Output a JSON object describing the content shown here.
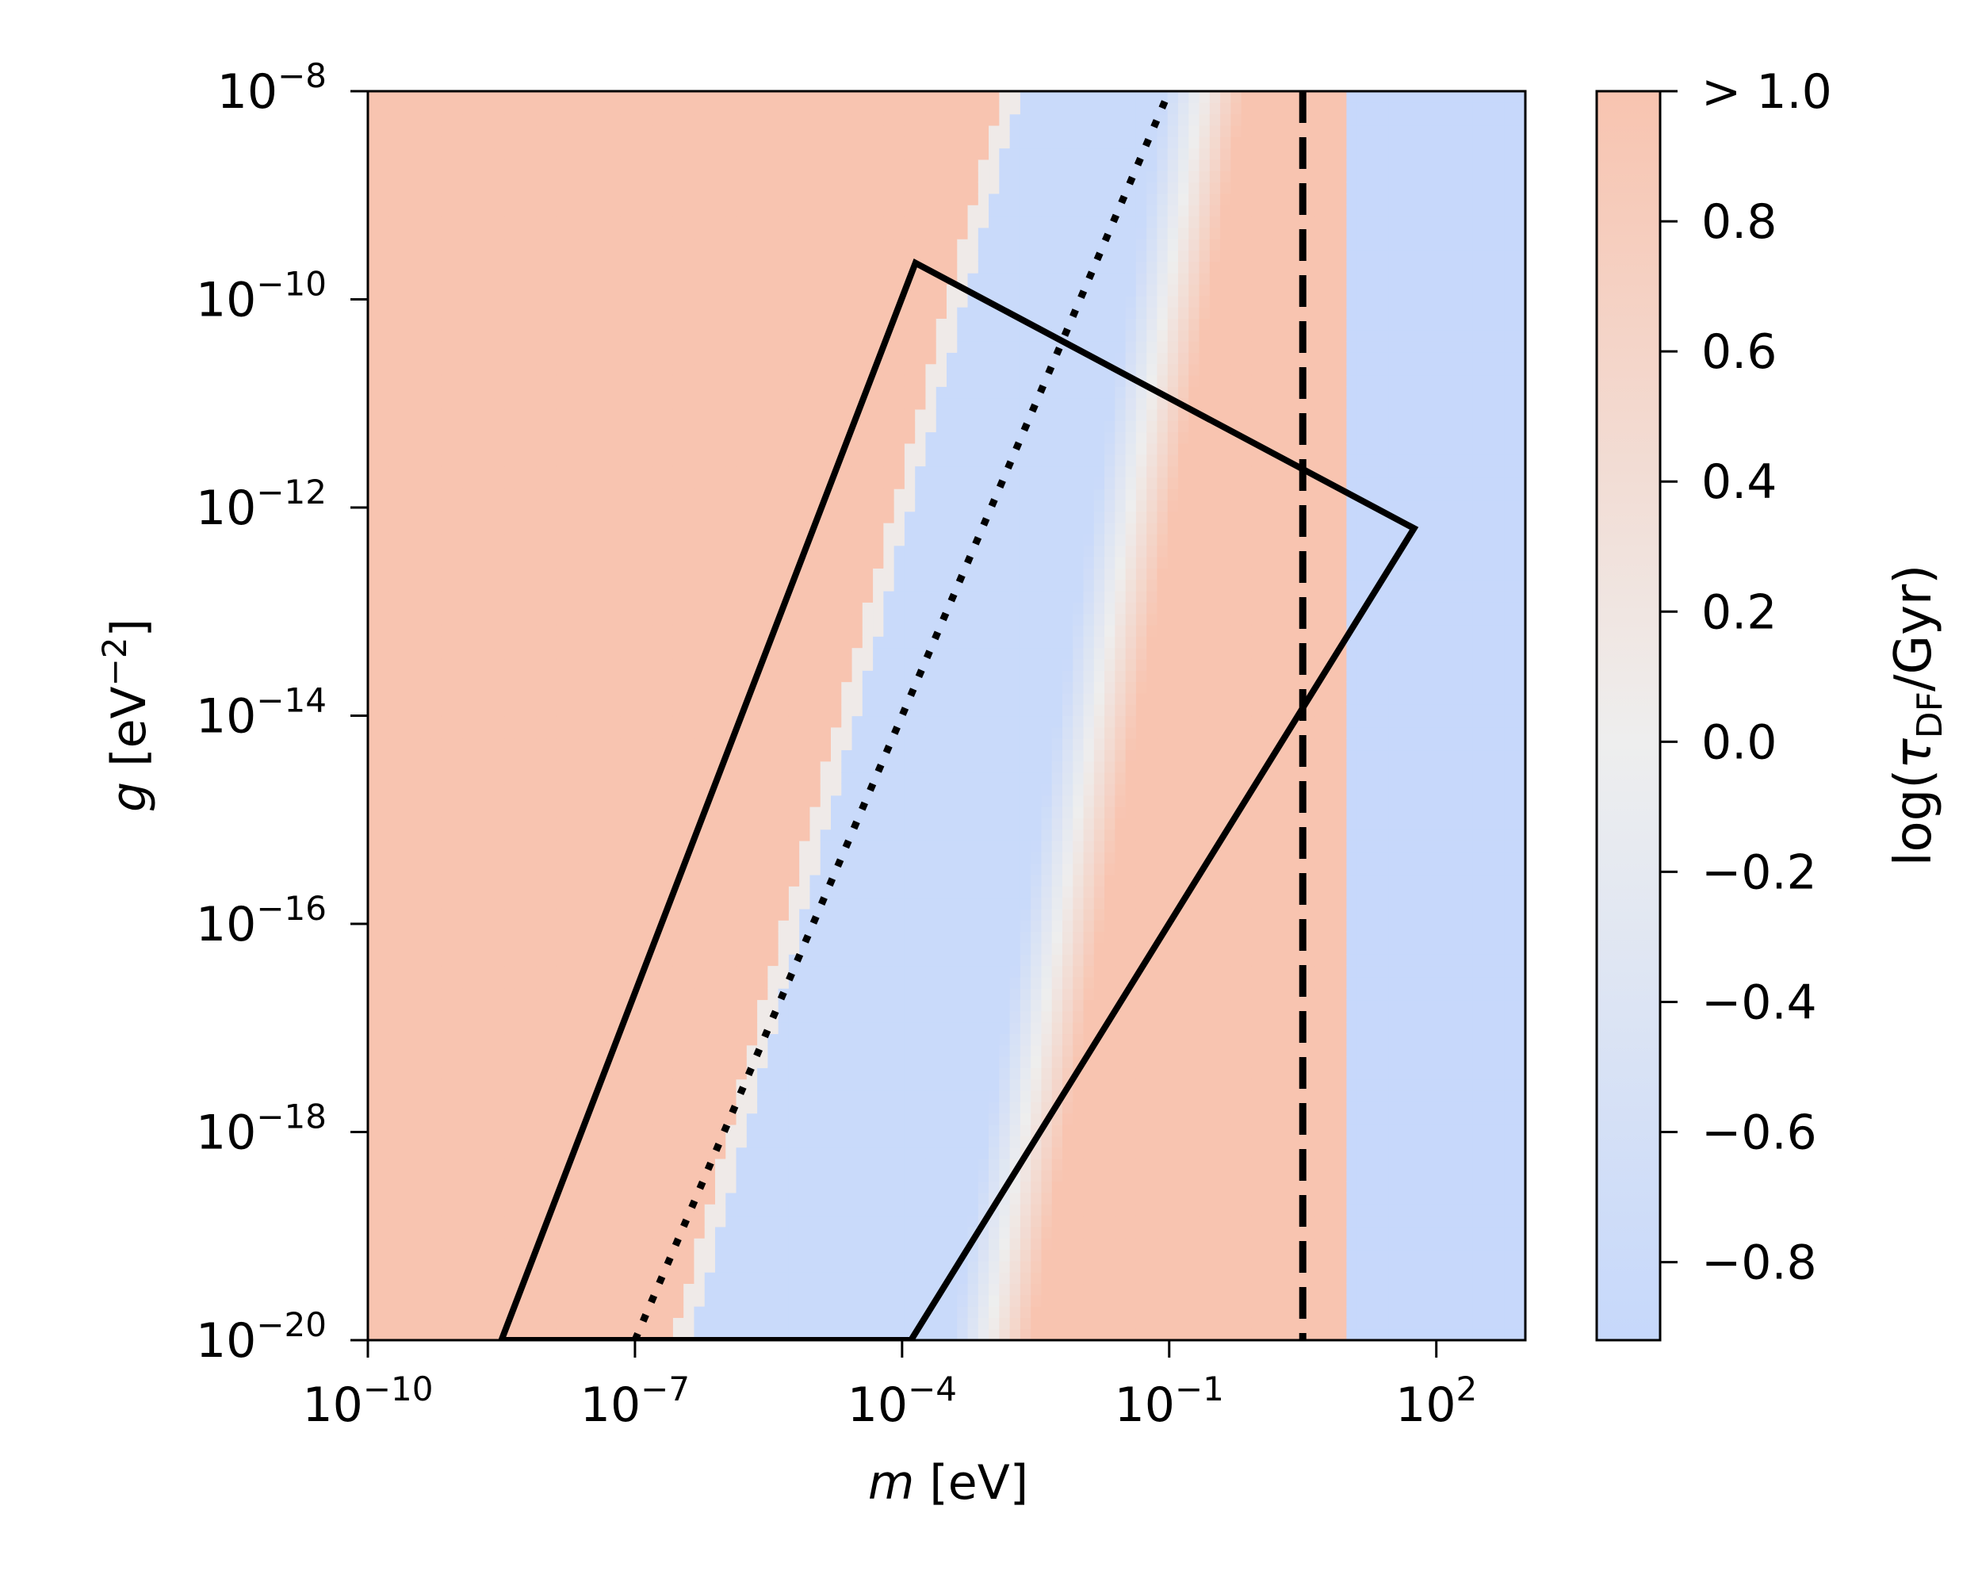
{
  "chart_data": {
    "type": "heatmap",
    "x_axis": {
      "label_var": "m",
      "label_unit": " [eV]",
      "scale": "log",
      "range_log10": [
        -10,
        3
      ],
      "ticks": [
        {
          "value": -10,
          "base": "10",
          "exp": "−10"
        },
        {
          "value": -7,
          "base": "10",
          "exp": "−7"
        },
        {
          "value": -4,
          "base": "10",
          "exp": "−4"
        },
        {
          "value": -1,
          "base": "10",
          "exp": "−1"
        },
        {
          "value": 2,
          "base": "10",
          "exp": "2"
        }
      ]
    },
    "y_axis": {
      "label_var": "g",
      "label_unit_pre": " [eV",
      "label_unit_exp": "−2",
      "label_unit_post": "]",
      "scale": "log",
      "range_log10": [
        -20,
        -8
      ],
      "ticks": [
        {
          "value": -8,
          "base": "10",
          "exp": "−8"
        },
        {
          "value": -10,
          "base": "10",
          "exp": "−10"
        },
        {
          "value": -12,
          "base": "10",
          "exp": "−12"
        },
        {
          "value": -14,
          "base": "10",
          "exp": "−14"
        },
        {
          "value": -16,
          "base": "10",
          "exp": "−16"
        },
        {
          "value": -18,
          "base": "10",
          "exp": "−18"
        },
        {
          "value": -20,
          "base": "10",
          "exp": "−20"
        }
      ]
    },
    "colorbar": {
      "label_pre": "log(",
      "label_sym": "τ",
      "label_sub": "DF",
      "label_post": "/Gyr)",
      "range": [
        -0.92,
        1.0
      ],
      "ticks": [
        {
          "value": 1.0,
          "label": "> 1.0"
        },
        {
          "value": 0.8,
          "label": "0.8"
        },
        {
          "value": 0.6,
          "label": "0.6"
        },
        {
          "value": 0.4,
          "label": "0.4"
        },
        {
          "value": 0.2,
          "label": "0.2"
        },
        {
          "value": 0.0,
          "label": "0.0"
        },
        {
          "value": -0.2,
          "label": "−0.2"
        },
        {
          "value": -0.4,
          "label": "−0.4"
        },
        {
          "value": -0.6,
          "label": "−0.6"
        },
        {
          "value": -0.8,
          "label": "−0.8"
        }
      ],
      "colormap": "coolwarm",
      "colors": {
        "low": "#c6d8fb",
        "mid": "#eeeeee",
        "high": "#f8c4b0"
      }
    },
    "heatmap": {
      "description_free": true,
      "high_region_boundary_slope": 2.65,
      "boundary_left_through": [
        [
          -6.45,
          -20
        ],
        [
          -2.75,
          -8
        ]
      ],
      "transition_band": [
        [
          -3.0,
          -20
        ],
        [
          -0.6,
          -8
        ]
      ],
      "vertical_band_right_edge_log10_m": 0.95,
      "grid_cells": [
        110,
        110
      ]
    },
    "polygon": {
      "points_log10": [
        [
          -8.5,
          -20
        ],
        [
          -3.85,
          -9.65
        ],
        [
          1.75,
          -12.2
        ],
        [
          -3.9,
          -20
        ]
      ],
      "color": "#000000"
    },
    "dotted_line": {
      "points_log10": [
        [
          -7.0,
          -20
        ],
        [
          -1.0,
          -8
        ]
      ],
      "color": "#000000"
    },
    "dashed_line": {
      "x_log10": 0.5,
      "color": "#000000"
    }
  }
}
